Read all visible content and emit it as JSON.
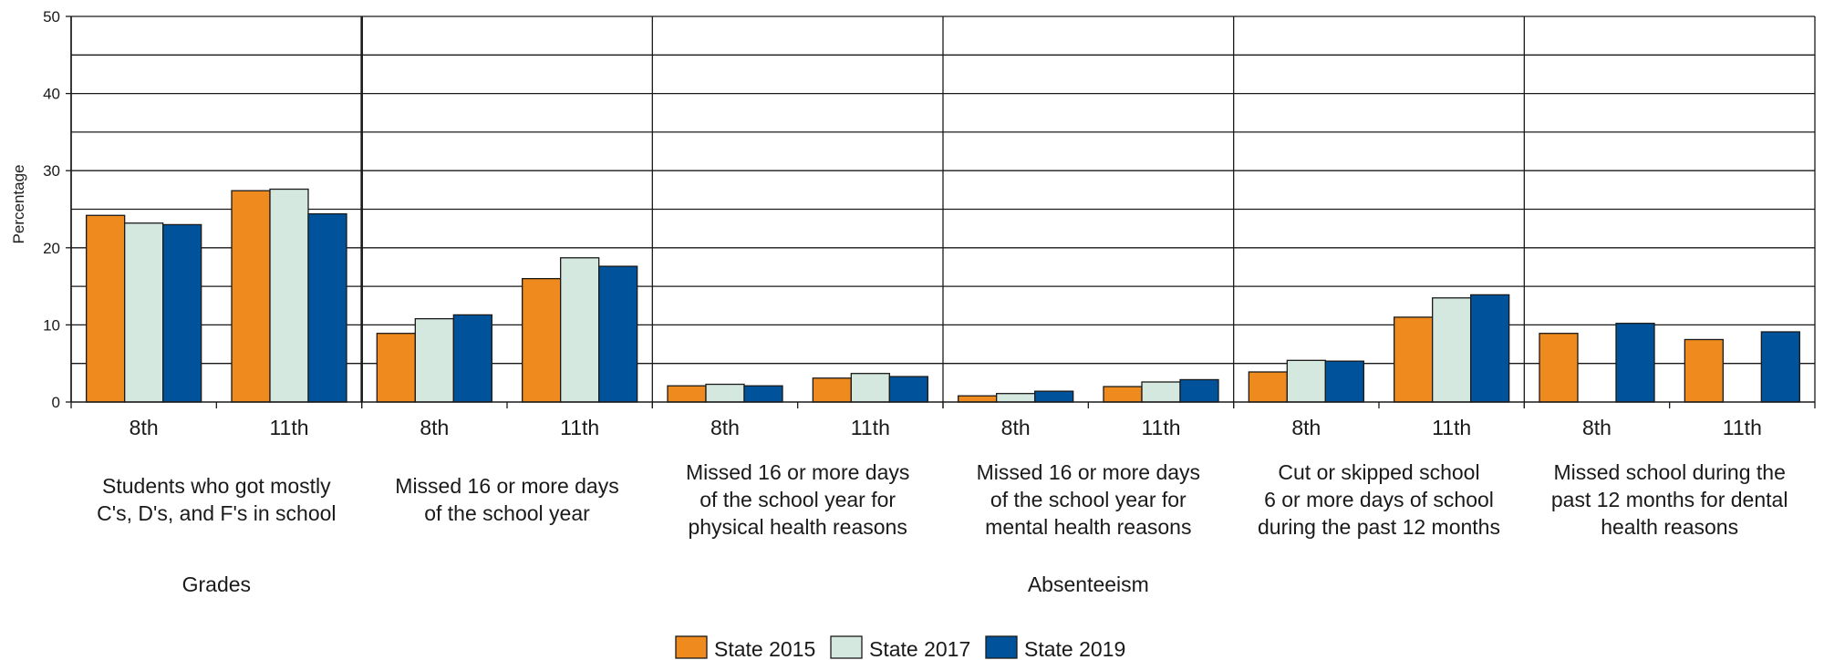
{
  "chart_data": {
    "type": "bar",
    "ylabel": "Percentage",
    "ylim": [
      0,
      50
    ],
    "yticks": [
      0,
      10,
      20,
      30,
      40,
      50
    ],
    "grid": true,
    "legend_position": "bottom-center",
    "series": [
      {
        "name": "State 2015",
        "color": "#ef8a1e"
      },
      {
        "name": "State 2017",
        "color": "#d5e8e0"
      },
      {
        "name": "State 2019",
        "color": "#00539b"
      }
    ],
    "groups": [
      {
        "label_lines": [
          "Students who got mostly",
          "C's, D's, and F's in school"
        ],
        "categories": [
          {
            "label": "8th",
            "values": [
              24.2,
              23.2,
              23.0
            ]
          },
          {
            "label": "11th",
            "values": [
              27.4,
              27.6,
              24.4
            ]
          }
        ]
      },
      {
        "label_lines": [
          "Missed 16 or more days",
          "of the school year"
        ],
        "categories": [
          {
            "label": "8th",
            "values": [
              8.9,
              10.8,
              11.3
            ]
          },
          {
            "label": "11th",
            "values": [
              16.0,
              18.7,
              17.6
            ]
          }
        ]
      },
      {
        "label_lines": [
          "Missed 16 or more days",
          "of the school year for",
          "physical health reasons"
        ],
        "categories": [
          {
            "label": "8th",
            "values": [
              2.1,
              2.3,
              2.1
            ]
          },
          {
            "label": "11th",
            "values": [
              3.1,
              3.7,
              3.3
            ]
          }
        ]
      },
      {
        "label_lines": [
          "Missed 16 or more days",
          "of the school year for",
          "mental health reasons"
        ],
        "categories": [
          {
            "label": "8th",
            "values": [
              0.8,
              1.1,
              1.4
            ]
          },
          {
            "label": "11th",
            "values": [
              2.0,
              2.6,
              2.9
            ]
          }
        ]
      },
      {
        "label_lines": [
          "Cut or skipped school",
          "6 or more days of school",
          "during the past 12 months"
        ],
        "categories": [
          {
            "label": "8th",
            "values": [
              3.9,
              5.4,
              5.3
            ]
          },
          {
            "label": "11th",
            "values": [
              11.0,
              13.5,
              13.9
            ]
          }
        ]
      },
      {
        "label_lines": [
          "Missed school during the",
          "past 12 months for dental",
          "health reasons"
        ],
        "categories": [
          {
            "label": "8th",
            "values": [
              8.9,
              null,
              10.2
            ]
          },
          {
            "label": "11th",
            "values": [
              8.1,
              null,
              9.1
            ]
          }
        ]
      }
    ],
    "sections": [
      {
        "label": "Grades",
        "group_span": [
          0,
          0
        ]
      },
      {
        "label": "Absenteeism",
        "group_span": [
          1,
          5
        ]
      }
    ]
  }
}
